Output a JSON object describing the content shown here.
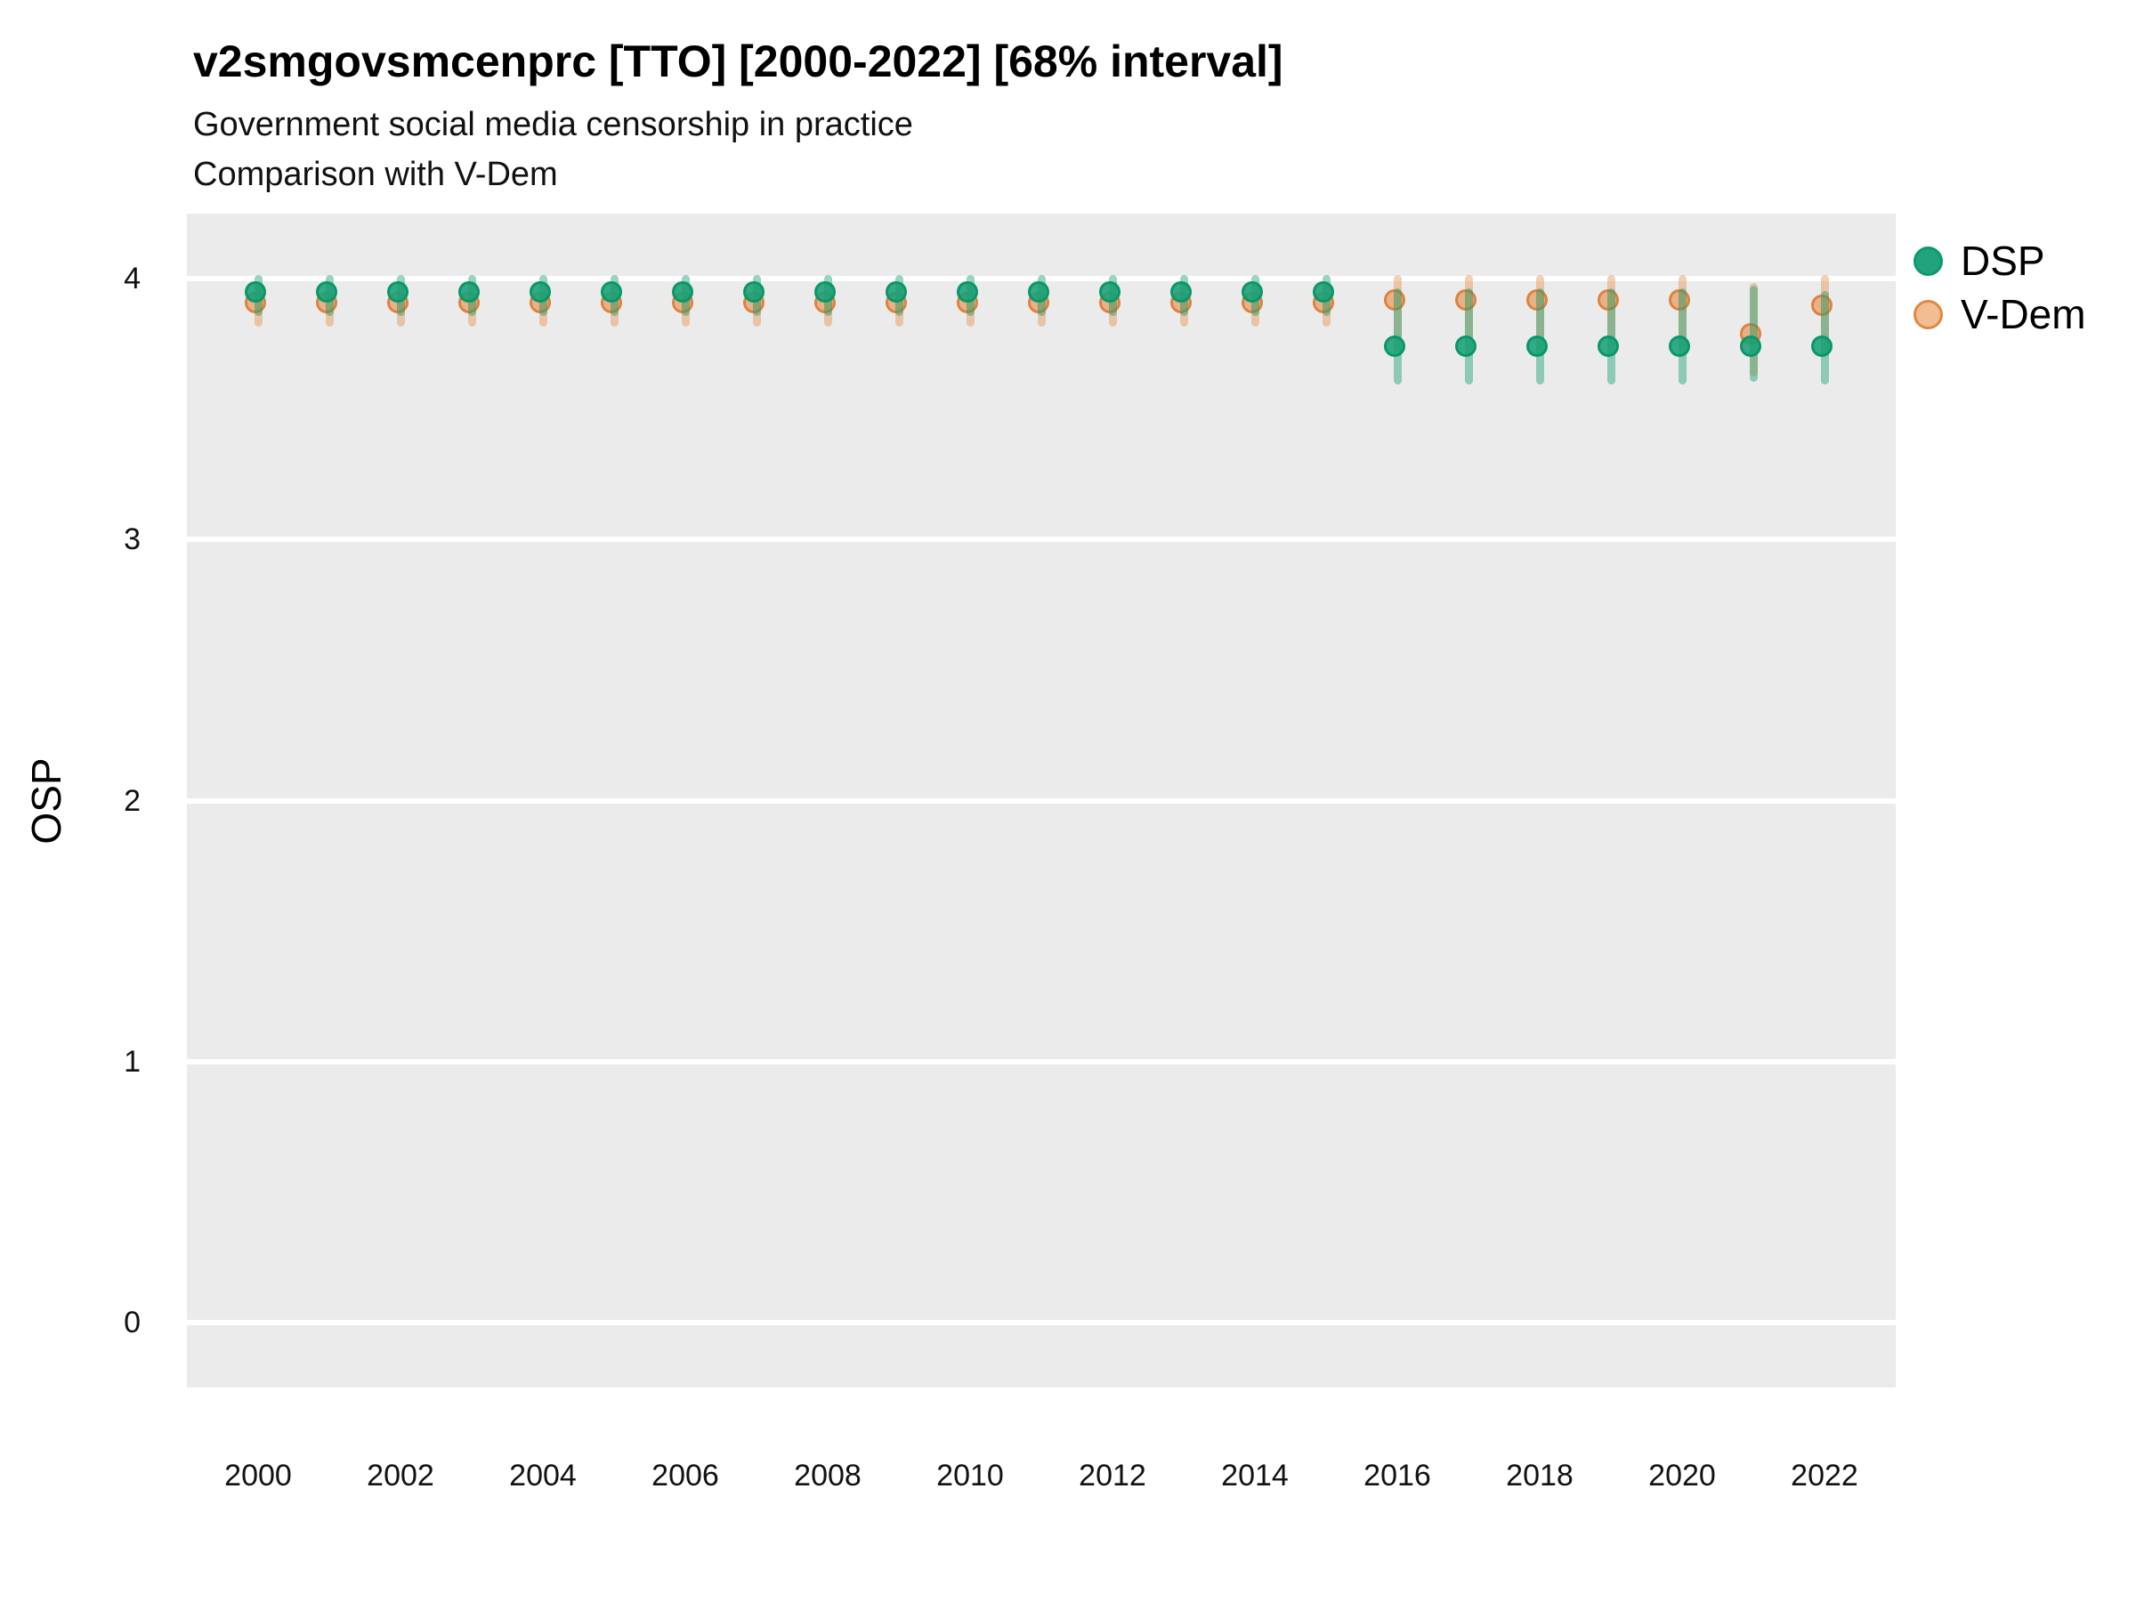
{
  "title": "v2smgovsmcenprc [TTO] [2000-2022] [68% interval]",
  "subtitle_line1": "Government social media censorship in practice",
  "subtitle_line2": "Comparison with V-Dem",
  "axes": {
    "y_label": "OSP",
    "y_ticks": [
      0,
      1,
      2,
      3,
      4
    ],
    "x_ticks": [
      2000,
      2002,
      2004,
      2006,
      2008,
      2010,
      2012,
      2014,
      2016,
      2018,
      2020,
      2022
    ]
  },
  "legend": {
    "items": [
      {
        "label": "DSP",
        "color": "#21a47e",
        "stroke": "#0a9a6d"
      },
      {
        "label": "V-Dem",
        "color": "#f0bd94",
        "stroke": "#e0893f"
      }
    ]
  },
  "colors": {
    "panel_background": "#ebebeb",
    "gridline": "#ffffff",
    "dsp_point": "rgba(24,160,118,0.88)",
    "dsp_stroke": "rgba(8,150,104,0.95)",
    "dsp_bar": "rgba(24,160,118,0.45)",
    "vdem_point": "rgba(230,140,70,0.60)",
    "vdem_stroke": "rgba(219,118,45,0.80)",
    "vdem_bar": "rgba(230,140,70,0.42)"
  },
  "chart_data": {
    "type": "scatter",
    "title": "v2smgovsmcenprc [TTO] [2000-2022] [68% interval]",
    "subtitle": "Government social media censorship in practice — Comparison with V-Dem",
    "xlabel": "",
    "ylabel": "OSP",
    "x": [
      2000,
      2001,
      2002,
      2003,
      2004,
      2005,
      2006,
      2007,
      2008,
      2009,
      2010,
      2011,
      2012,
      2013,
      2014,
      2015,
      2016,
      2017,
      2018,
      2019,
      2020,
      2021,
      2022
    ],
    "xlim": [
      1999,
      2023
    ],
    "ylim": [
      -0.25,
      4.25
    ],
    "yticks": [
      0,
      1,
      2,
      3,
      4
    ],
    "xticks": [
      2000,
      2002,
      2004,
      2006,
      2008,
      2010,
      2012,
      2014,
      2016,
      2018,
      2020,
      2022
    ],
    "grid": "horizontal-major-only",
    "legend_position": "right",
    "interval": "68%",
    "series": [
      {
        "name": "DSP",
        "values": [
          3.94,
          3.94,
          3.94,
          3.94,
          3.94,
          3.94,
          3.94,
          3.94,
          3.94,
          3.94,
          3.94,
          3.94,
          3.94,
          3.94,
          3.94,
          3.94,
          3.73,
          3.73,
          3.73,
          3.73,
          3.73,
          3.73,
          3.73
        ],
        "lo": [
          3.87,
          3.87,
          3.87,
          3.87,
          3.87,
          3.87,
          3.87,
          3.87,
          3.87,
          3.87,
          3.87,
          3.87,
          3.87,
          3.87,
          3.87,
          3.87,
          3.61,
          3.61,
          3.61,
          3.61,
          3.61,
          3.62,
          3.61
        ],
        "hi": [
          4.0,
          4.0,
          4.0,
          4.0,
          4.0,
          4.0,
          4.0,
          4.0,
          4.0,
          4.0,
          4.0,
          4.0,
          4.0,
          4.0,
          4.0,
          4.0,
          3.95,
          3.95,
          3.95,
          3.95,
          3.95,
          3.96,
          3.94
        ]
      },
      {
        "name": "V-Dem",
        "values": [
          3.9,
          3.9,
          3.9,
          3.9,
          3.9,
          3.9,
          3.9,
          3.9,
          3.9,
          3.9,
          3.9,
          3.9,
          3.9,
          3.9,
          3.9,
          3.9,
          3.91,
          3.91,
          3.91,
          3.91,
          3.91,
          3.78,
          3.89
        ],
        "lo": [
          3.83,
          3.83,
          3.83,
          3.83,
          3.83,
          3.83,
          3.83,
          3.83,
          3.83,
          3.83,
          3.83,
          3.83,
          3.83,
          3.83,
          3.83,
          3.83,
          3.74,
          3.74,
          3.74,
          3.74,
          3.74,
          3.64,
          3.72
        ],
        "hi": [
          3.97,
          3.97,
          3.97,
          3.97,
          3.97,
          3.97,
          3.97,
          3.97,
          3.97,
          3.97,
          3.97,
          3.97,
          3.97,
          3.97,
          3.97,
          3.97,
          4.0,
          4.0,
          4.0,
          4.0,
          4.0,
          3.97,
          4.0
        ]
      }
    ]
  }
}
